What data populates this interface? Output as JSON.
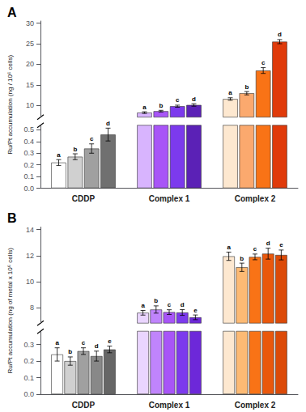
{
  "chart_data": [
    {
      "type": "bar",
      "title": "A",
      "ylabel": "Ru/Pt accumulation (ng / 10⁶ cells)",
      "categories": [
        "CDDP",
        "Complex 1",
        "Complex 2"
      ],
      "series": [
        {
          "name": "a",
          "values": [
            0.22,
            8.3,
            11.6
          ],
          "errors": [
            0.025,
            0.2,
            0.3
          ],
          "colors": [
            "#ffffff",
            "#d8b4fe",
            "#fde8d0"
          ]
        },
        {
          "name": "b",
          "values": [
            0.27,
            8.65,
            13.0
          ],
          "errors": [
            0.025,
            0.2,
            0.4
          ],
          "colors": [
            "#d0d0d0",
            "#a855f7",
            "#fba96e"
          ]
        },
        {
          "name": "c",
          "values": [
            0.34,
            9.85,
            18.5
          ],
          "errors": [
            0.04,
            0.25,
            0.7
          ],
          "colors": [
            "#a0a0a0",
            "#7c3aed",
            "#f97316"
          ]
        },
        {
          "name": "d",
          "values": [
            0.46,
            10.15,
            25.5
          ],
          "errors": [
            0.055,
            0.3,
            0.5
          ],
          "colors": [
            "#707070",
            "#5b21b6",
            "#e03a0a"
          ]
        }
      ],
      "ylim": [
        [
          0.0,
          0.54
        ],
        [
          7.2,
          30.5
        ]
      ],
      "yticks": [
        [
          {
            "value": 0.0,
            "label": "0.0"
          },
          0.1,
          0.2,
          0.3,
          0.4,
          0.5
        ],
        [
          10,
          15,
          20,
          25,
          30
        ]
      ],
      "grid": false
    },
    {
      "type": "bar",
      "title": "B",
      "ylabel": "Ru/Pt accumulation (ng of metal x 10⁶ cells)",
      "categories": [
        "CDDP",
        "Complex 1",
        "Complex 2"
      ],
      "series": [
        {
          "name": "a",
          "values": [
            0.24,
            7.6,
            11.95
          ],
          "errors": [
            0.04,
            0.18,
            0.32
          ],
          "colors": [
            "#ffffff",
            "#ead5ff",
            "#fde8d0"
          ]
        },
        {
          "name": "b",
          "values": [
            0.2,
            7.85,
            11.1
          ],
          "errors": [
            0.025,
            0.28,
            0.32
          ],
          "colors": [
            "#d0d0d0",
            "#c084fc",
            "#fdba74"
          ]
        },
        {
          "name": "c",
          "values": [
            0.26,
            7.65,
            11.9
          ],
          "errors": [
            0.02,
            0.18,
            0.22
          ],
          "colors": [
            "#a0a0a0",
            "#a855f7",
            "#f97316"
          ]
        },
        {
          "name": "d",
          "values": [
            0.23,
            7.62,
            12.15
          ],
          "errors": [
            0.03,
            0.22,
            0.42
          ],
          "colors": [
            "#888888",
            "#7c3aed",
            "#ea580c"
          ]
        },
        {
          "name": "e",
          "values": [
            0.27,
            7.25,
            12.05
          ],
          "errors": [
            0.02,
            0.18,
            0.38
          ],
          "colors": [
            "#666666",
            "#6d28d9",
            "#dc4a08"
          ]
        }
      ],
      "ylim": [
        [
          0.0,
          0.38
        ],
        [
          6.8,
          14.2
        ]
      ],
      "yticks": [
        [
          {
            "value": 0.0,
            "label": "0.0"
          },
          0.1,
          0.2,
          0.3
        ],
        [
          8,
          10,
          12,
          14
        ]
      ],
      "grid": false
    }
  ]
}
